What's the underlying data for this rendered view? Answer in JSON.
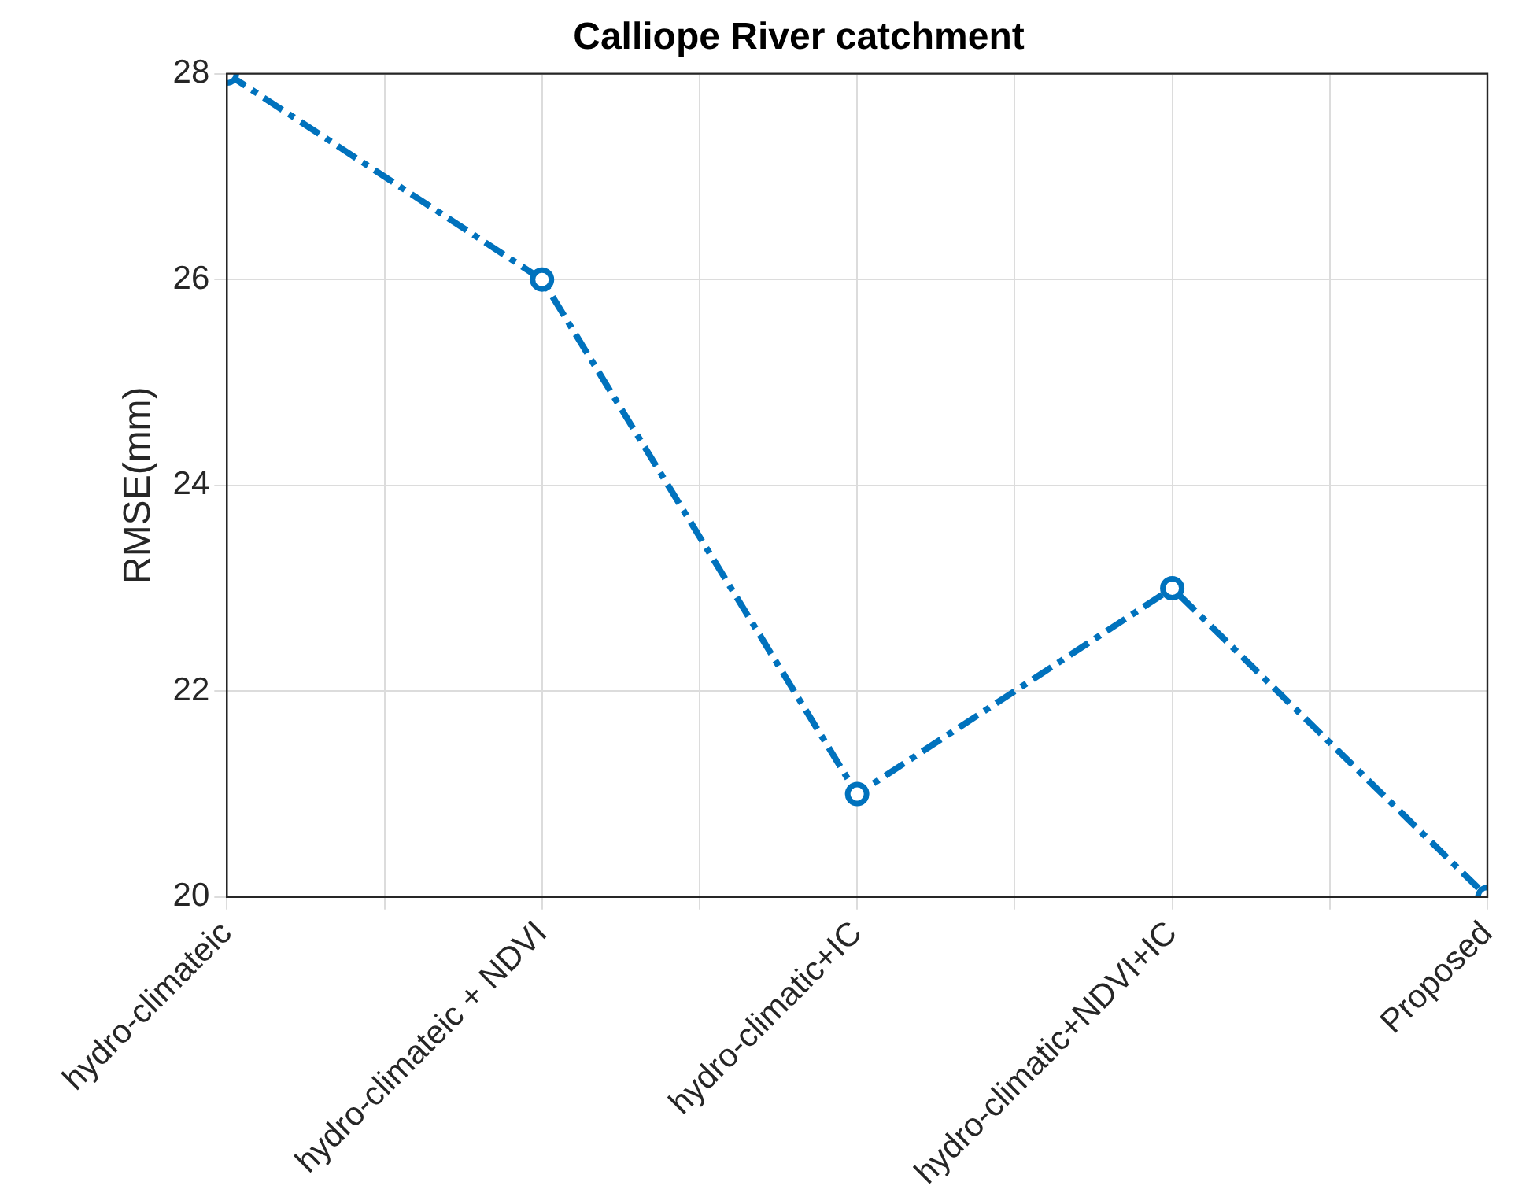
{
  "chart_data": {
    "type": "line",
    "title": "Calliope River catchment",
    "ylabel": "RMSE(mm)",
    "categories": [
      "hydro-climateic",
      "hydro-climateic + NDVI",
      "hydro-climatic+IC",
      "hydro-climatic+NDVI+IC",
      "Proposed"
    ],
    "series": [
      {
        "color": "#0072bd",
        "values": [
          28,
          26,
          21,
          23,
          20
        ]
      }
    ],
    "ylim": [
      20,
      28
    ],
    "yticks": [
      20,
      22,
      24,
      26,
      28
    ],
    "grid": true,
    "legend": false,
    "marker": "circle",
    "line_style": "dashed"
  }
}
